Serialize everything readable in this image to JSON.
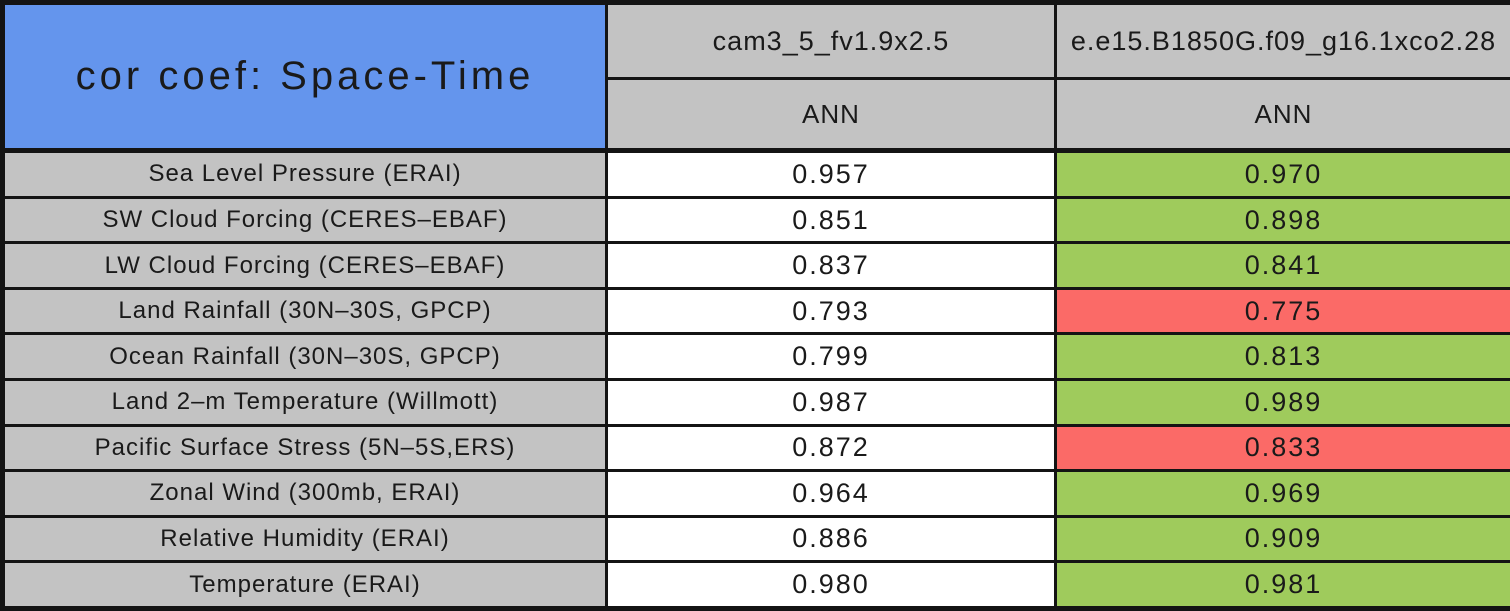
{
  "chart_data": {
    "type": "table",
    "title": "cor coef: Space-Time",
    "columns": [
      {
        "name": "cam3_5_fv1.9x2.5",
        "season": "ANN"
      },
      {
        "name": "e.e15.B1850G.f09_g16.1xco2.28",
        "season": "ANN"
      }
    ],
    "series": [
      {
        "name": "cam3_5_fv1.9x2.5",
        "values": [
          0.957,
          0.851,
          0.837,
          0.793,
          0.799,
          0.987,
          0.872,
          0.964,
          0.886,
          0.98
        ]
      },
      {
        "name": "e.e15.B1850G.f09_g16.1xco2.28",
        "values": [
          0.97,
          0.898,
          0.841,
          0.775,
          0.813,
          0.989,
          0.833,
          0.969,
          0.909,
          0.981
        ]
      }
    ],
    "rows": [
      {
        "label": "Sea Level Pressure (ERAI)",
        "values": [
          "0.957",
          "0.970"
        ],
        "status": [
          "neutral",
          "better"
        ]
      },
      {
        "label": "SW Cloud Forcing (CERES–EBAF)",
        "values": [
          "0.851",
          "0.898"
        ],
        "status": [
          "neutral",
          "better"
        ]
      },
      {
        "label": "LW Cloud Forcing (CERES–EBAF)",
        "values": [
          "0.837",
          "0.841"
        ],
        "status": [
          "neutral",
          "better"
        ]
      },
      {
        "label": "Land Rainfall (30N–30S, GPCP)",
        "values": [
          "0.793",
          "0.775"
        ],
        "status": [
          "neutral",
          "worse"
        ]
      },
      {
        "label": "Ocean Rainfall (30N–30S, GPCP)",
        "values": [
          "0.799",
          "0.813"
        ],
        "status": [
          "neutral",
          "better"
        ]
      },
      {
        "label": "Land 2–m Temperature (Willmott)",
        "values": [
          "0.987",
          "0.989"
        ],
        "status": [
          "neutral",
          "better"
        ]
      },
      {
        "label": "Pacific Surface Stress (5N–5S,ERS)",
        "values": [
          "0.872",
          "0.833"
        ],
        "status": [
          "neutral",
          "worse"
        ]
      },
      {
        "label": "Zonal Wind (300mb, ERAI)",
        "values": [
          "0.964",
          "0.969"
        ],
        "status": [
          "neutral",
          "better"
        ]
      },
      {
        "label": "Relative Humidity (ERAI)",
        "values": [
          "0.886",
          "0.909"
        ],
        "status": [
          "neutral",
          "better"
        ]
      },
      {
        "label": "Temperature (ERAI)",
        "values": [
          "0.980",
          "0.981"
        ],
        "status": [
          "neutral",
          "better"
        ]
      }
    ],
    "colors": {
      "title_bg": "#6495ED",
      "header_bg": "#C3C3C3",
      "label_bg": "#C3C3C3",
      "better": "#9FCB5C",
      "worse": "#FB6A67",
      "neutral": "#FFFFFF",
      "border": "#141414"
    },
    "layout": {
      "legend": "none",
      "grid": "all-cell-borders",
      "value_precision": 3
    }
  }
}
